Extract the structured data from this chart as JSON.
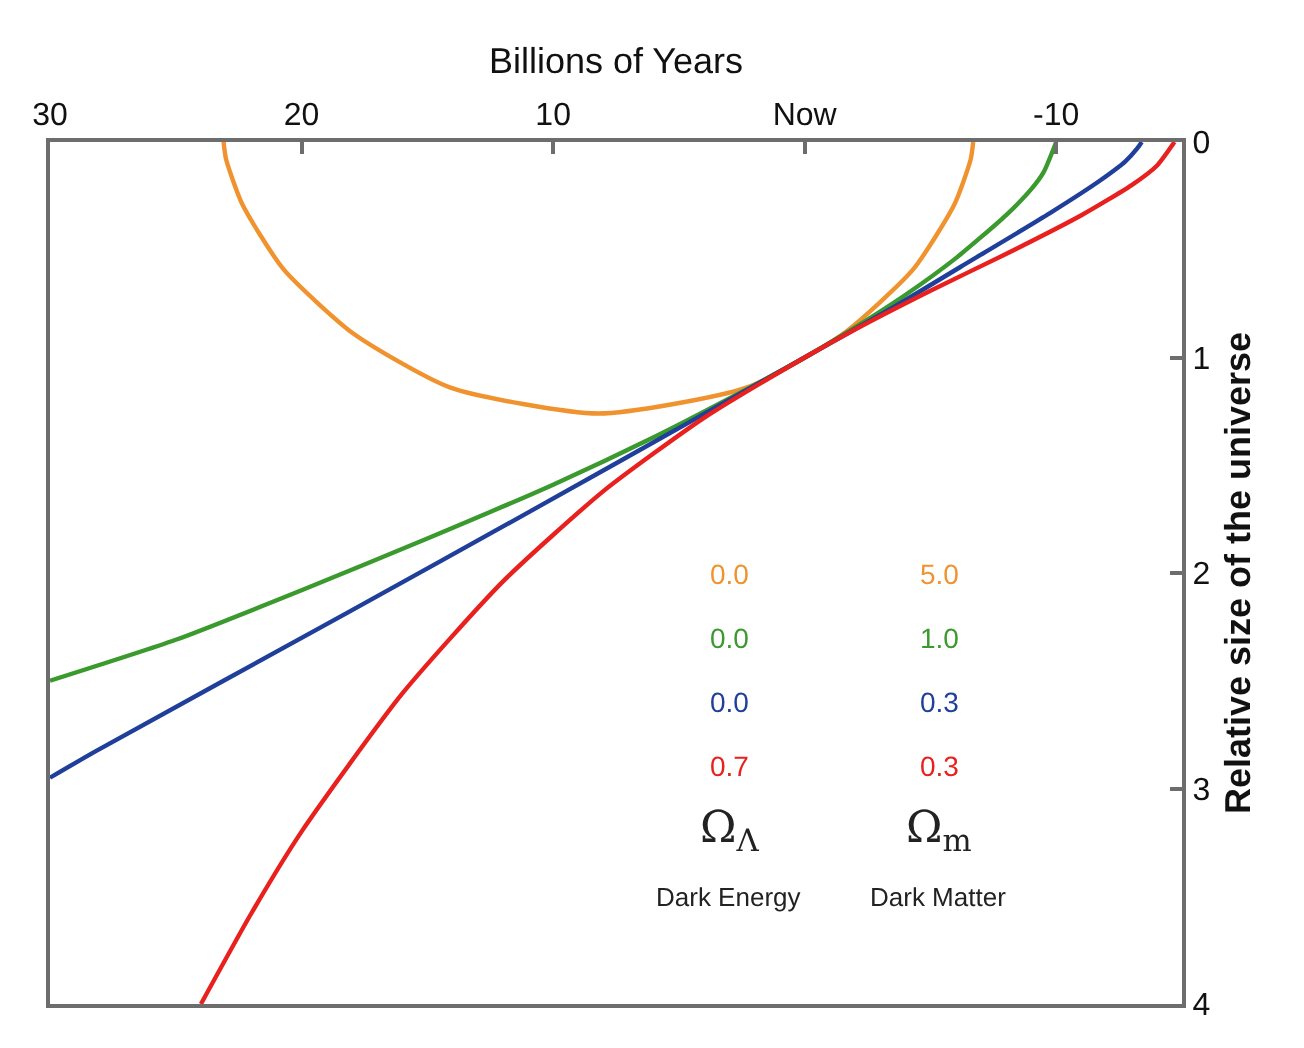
{
  "chart_data": {
    "type": "line",
    "xlabel": "Billions of Years",
    "ylabel": "Relative size of the universe",
    "xlim": [
      30,
      -15
    ],
    "xticks": [
      -10,
      {
        "value": 0,
        "label": "Now"
      },
      10,
      20,
      30
    ],
    "ylim": [
      4,
      0
    ],
    "yticks": [
      0,
      1,
      2,
      3,
      4
    ],
    "marker": "none",
    "line_style": "solid",
    "annotations": [
      "Ω$_{Λ}$",
      "Ω$_{m}$",
      "Dark Energy",
      "Dark Matter"
    ],
    "series": [
      {
        "name": "0.0 5.0",
        "color": "#f0922e",
        "x": [
          -6.7,
          -6.6,
          -5.95,
          -4.32,
          -1.53,
          2.32,
          8.2,
          14.08,
          17.93,
          20.72,
          22.35,
          23.0,
          23.1
        ],
        "values": [
          0,
          0.08,
          0.29,
          0.59,
          0.89,
          1.14,
          1.26,
          1.14,
          0.89,
          0.59,
          0.29,
          0.08,
          0
        ]
      },
      {
        "name": "0.0 1.0",
        "color": "#3a9a2e",
        "x": [
          -10,
          -9.5,
          -9,
          -8,
          -6,
          -4,
          -2,
          0,
          3,
          6,
          10,
          15,
          20,
          25,
          30
        ],
        "values": [
          0,
          0.14,
          0.22,
          0.34,
          0.54,
          0.71,
          0.86,
          1.0,
          1.19,
          1.37,
          1.59,
          1.84,
          2.08,
          2.31,
          2.5
        ]
      },
      {
        "name": "0.0 0.3",
        "color": "#1f3f9a",
        "x": [
          -13.4,
          -13.22,
          -12.75,
          -11.73,
          -9.75,
          -6.19,
          -3.48,
          0,
          4.58,
          10.54,
          18.26,
          28.23,
          30
        ],
        "values": [
          0,
          0.03,
          0.09,
          0.18,
          0.33,
          0.58,
          0.77,
          1.0,
          1.3,
          1.69,
          2.19,
          2.83,
          2.95
        ]
      },
      {
        "name": "0.7 0.3",
        "color": "#e8201e",
        "x": [
          -14.7,
          -14,
          -13,
          -11,
          -8,
          -5,
          -2,
          0,
          4,
          8,
          12,
          16,
          20,
          22,
          24
        ],
        "values": [
          0,
          0.11,
          0.2,
          0.34,
          0.52,
          0.69,
          0.87,
          1.0,
          1.28,
          1.62,
          2.04,
          2.56,
          3.2,
          3.58,
          4.0
        ]
      }
    ]
  }
}
